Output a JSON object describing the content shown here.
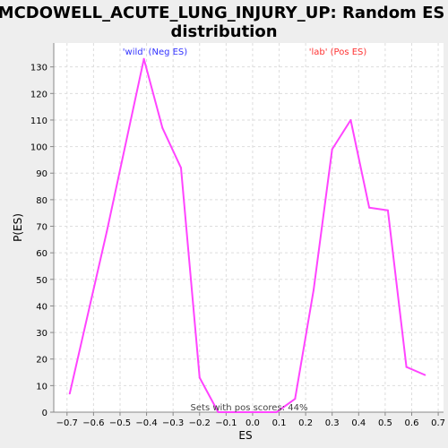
{
  "chart_data": {
    "type": "line",
    "title_lines": [
      "MCDOWELL_ACUTE_LUNG_INJURY_UP: Random ES",
      "distribution"
    ],
    "xlabel": "ES",
    "ylabel": "P(ES)",
    "xlim": [
      -0.75,
      0.72
    ],
    "ylim": [
      0,
      139
    ],
    "x_ticks": [
      -0.7,
      -0.6,
      -0.5,
      -0.4,
      -0.3,
      -0.2,
      -0.1,
      0.0,
      0.1,
      0.2,
      0.3,
      0.4,
      0.5,
      0.6,
      0.7
    ],
    "x_tick_labels": [
      "−0.7",
      "−0.6",
      "−0.5",
      "−0.4",
      "−0.3",
      "−0.2",
      "−0.1",
      "0.0",
      "0.1",
      "0.2",
      "0.3",
      "0.4",
      "0.5",
      "0.6",
      "0.7"
    ],
    "y_ticks": [
      0,
      10,
      20,
      30,
      40,
      50,
      60,
      70,
      80,
      90,
      100,
      110,
      120,
      130
    ],
    "y_tick_labels": [
      "0",
      "10",
      "20",
      "30",
      "40",
      "50",
      "60",
      "70",
      "80",
      "90",
      "100",
      "110",
      "120",
      "130"
    ],
    "grid": true,
    "series": [
      {
        "color": "#ff44ff",
        "x": [
          -0.69,
          -0.55,
          -0.41,
          -0.34,
          -0.27,
          -0.2,
          -0.13,
          -0.06,
          0.02,
          0.09,
          0.16,
          0.23,
          0.3,
          0.37,
          0.44,
          0.51,
          0.58,
          0.65
        ],
        "y": [
          7,
          68,
          133,
          107,
          92,
          13,
          0,
          0,
          0,
          0,
          5,
          46,
          99,
          110,
          77,
          76,
          17,
          14
        ]
      }
    ],
    "annotations": {
      "neg_label": "'wild' (Neg ES)",
      "neg_color": "#3333ff",
      "pos_label": "'lab' (Pos ES)",
      "pos_color": "#ff3333",
      "footer": "Sets with pos scores: 44%",
      "footer_color": "#444444"
    }
  }
}
